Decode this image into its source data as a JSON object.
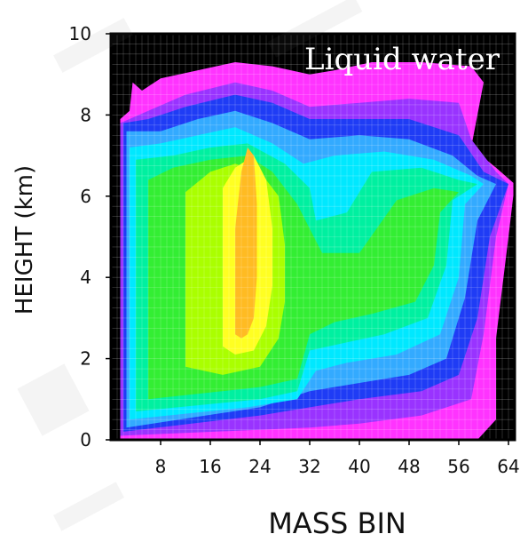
{
  "chart_data": {
    "type": "heatmap",
    "title": "",
    "annotation": "Liquid water",
    "xlabel": "MASS BIN",
    "ylabel": "HEIGHT (km)",
    "xlim": [
      0,
      65
    ],
    "ylim": [
      0,
      10
    ],
    "x_ticks": [
      8,
      16,
      24,
      32,
      40,
      48,
      56,
      64
    ],
    "y_ticks": [
      0,
      2,
      4,
      6,
      8,
      10
    ],
    "grid": true,
    "background_color": "#000000",
    "colors": {
      "magenta": "#ff33ff",
      "violet": "#9933ff",
      "blue": "#1f3cf5",
      "light_blue": "#33aaff",
      "cyan": "#00e8ff",
      "aqua_green": "#00f0a0",
      "green": "#33ee33",
      "yellow_green": "#aaff00",
      "yellow": "#ffff22",
      "orange": "#ffbb22"
    },
    "levels": [
      {
        "color": "magenta",
        "outline": [
          [
            1.5,
            0
          ],
          [
            1.5,
            7.9
          ],
          [
            3,
            8.1
          ],
          [
            3.5,
            8.8
          ],
          [
            5,
            8.6
          ],
          [
            8,
            8.9
          ],
          [
            14,
            9.1
          ],
          [
            20,
            9.3
          ],
          [
            26,
            9.2
          ],
          [
            32,
            9.0
          ],
          [
            36,
            9.1
          ],
          [
            42,
            9.3
          ],
          [
            50,
            9.3
          ],
          [
            58,
            9.2
          ],
          [
            60,
            8.8
          ],
          [
            59,
            8.0
          ],
          [
            58,
            7.2
          ],
          [
            62,
            6.7
          ],
          [
            65,
            6.3
          ],
          [
            64,
            5.0
          ],
          [
            62,
            2.5
          ],
          [
            62,
            0.5
          ],
          [
            59,
            0
          ],
          [
            1.5,
            0
          ]
        ]
      },
      {
        "color": "violet",
        "outline": [
          [
            1.5,
            0.1
          ],
          [
            1.5,
            7.8
          ],
          [
            6,
            8.1
          ],
          [
            12,
            8.5
          ],
          [
            20,
            8.8
          ],
          [
            26,
            8.6
          ],
          [
            32,
            8.2
          ],
          [
            40,
            8.3
          ],
          [
            48,
            8.4
          ],
          [
            56,
            8.3
          ],
          [
            58,
            7.4
          ],
          [
            62,
            6.6
          ],
          [
            64,
            6.3
          ],
          [
            62,
            5.0
          ],
          [
            60,
            2.6
          ],
          [
            58,
            1.0
          ],
          [
            50,
            0.6
          ],
          [
            40,
            0.4
          ],
          [
            32,
            0.3
          ],
          [
            1.5,
            0.1
          ]
        ]
      },
      {
        "color": "blue",
        "outline": [
          [
            2,
            0.2
          ],
          [
            2,
            7.8
          ],
          [
            6,
            7.9
          ],
          [
            12,
            8.2
          ],
          [
            20,
            8.5
          ],
          [
            26,
            8.3
          ],
          [
            32,
            7.9
          ],
          [
            40,
            7.9
          ],
          [
            48,
            7.9
          ],
          [
            56,
            7.5
          ],
          [
            60,
            6.6
          ],
          [
            64,
            6.3
          ],
          [
            61,
            5.0
          ],
          [
            59,
            3.0
          ],
          [
            56,
            1.6
          ],
          [
            50,
            1.2
          ],
          [
            40,
            1.0
          ],
          [
            32,
            0.8
          ],
          [
            24,
            0.6
          ],
          [
            2,
            0.2
          ]
        ]
      },
      {
        "color": "light_blue",
        "outline": [
          [
            2.5,
            0.3
          ],
          [
            2.5,
            7.6
          ],
          [
            8,
            7.6
          ],
          [
            14,
            7.9
          ],
          [
            20,
            8.1
          ],
          [
            26,
            7.8
          ],
          [
            32,
            7.4
          ],
          [
            40,
            7.5
          ],
          [
            48,
            7.4
          ],
          [
            55,
            7.0
          ],
          [
            59,
            6.5
          ],
          [
            62,
            6.3
          ],
          [
            59,
            5.4
          ],
          [
            57,
            3.5
          ],
          [
            54,
            2.0
          ],
          [
            48,
            1.6
          ],
          [
            40,
            1.4
          ],
          [
            32,
            1.2
          ],
          [
            24,
            0.8
          ],
          [
            2.5,
            0.3
          ]
        ]
      },
      {
        "color": "cyan",
        "outline": [
          [
            3,
            0.5
          ],
          [
            3,
            7.2
          ],
          [
            8,
            7.3
          ],
          [
            14,
            7.5
          ],
          [
            20,
            7.7
          ],
          [
            26,
            7.3
          ],
          [
            31,
            6.8
          ],
          [
            36,
            7.0
          ],
          [
            44,
            7.1
          ],
          [
            52,
            6.9
          ],
          [
            58,
            6.5
          ],
          [
            60,
            6.3
          ],
          [
            57,
            5.8
          ],
          [
            56,
            4.0
          ],
          [
            53,
            2.6
          ],
          [
            46,
            2.1
          ],
          [
            38,
            1.9
          ],
          [
            33,
            1.7
          ],
          [
            30,
            1.0
          ],
          [
            22,
            0.8
          ],
          [
            3,
            0.5
          ]
        ]
      },
      {
        "color": "aqua_green",
        "outline": [
          [
            4,
            0.7
          ],
          [
            4,
            6.9
          ],
          [
            10,
            7.0
          ],
          [
            16,
            7.2
          ],
          [
            22,
            7.3
          ],
          [
            28,
            6.8
          ],
          [
            32,
            6.2
          ],
          [
            33,
            5.4
          ],
          [
            38,
            5.6
          ],
          [
            42,
            6.6
          ],
          [
            50,
            6.7
          ],
          [
            56,
            6.4
          ],
          [
            59,
            6.3
          ],
          [
            55,
            5.9
          ],
          [
            54,
            4.3
          ],
          [
            51,
            3.0
          ],
          [
            44,
            2.6
          ],
          [
            38,
            2.4
          ],
          [
            32,
            2.2
          ],
          [
            30,
            1.2
          ],
          [
            24,
            1.0
          ],
          [
            4,
            0.7
          ]
        ]
      },
      {
        "color": "green",
        "outline": [
          [
            6,
            1.0
          ],
          [
            6,
            6.4
          ],
          [
            10,
            6.7
          ],
          [
            16,
            6.9
          ],
          [
            22,
            7.0
          ],
          [
            26,
            6.6
          ],
          [
            30,
            5.8
          ],
          [
            32,
            5.2
          ],
          [
            34,
            4.6
          ],
          [
            40,
            4.6
          ],
          [
            46,
            5.9
          ],
          [
            52,
            6.2
          ],
          [
            56,
            6.1
          ],
          [
            53,
            5.6
          ],
          [
            52,
            4.3
          ],
          [
            49,
            3.4
          ],
          [
            42,
            3.1
          ],
          [
            36,
            2.9
          ],
          [
            32,
            2.6
          ],
          [
            30,
            1.5
          ],
          [
            24,
            1.3
          ],
          [
            6,
            1.0
          ]
        ]
      },
      {
        "color": "yellow_green",
        "outline": [
          [
            12,
            1.8
          ],
          [
            12,
            6.1
          ],
          [
            16,
            6.6
          ],
          [
            20,
            6.8
          ],
          [
            24,
            6.6
          ],
          [
            27,
            6.0
          ],
          [
            28,
            4.8
          ],
          [
            28,
            3.4
          ],
          [
            27,
            2.5
          ],
          [
            24,
            1.8
          ],
          [
            18,
            1.6
          ],
          [
            12,
            1.8
          ]
        ]
      },
      {
        "color": "yellow",
        "outline": [
          [
            18,
            2.3
          ],
          [
            18,
            6.2
          ],
          [
            20,
            6.7
          ],
          [
            23,
            7.0
          ],
          [
            25,
            6.4
          ],
          [
            26,
            5.2
          ],
          [
            26,
            3.8
          ],
          [
            25,
            2.8
          ],
          [
            23,
            2.2
          ],
          [
            20,
            2.1
          ],
          [
            18,
            2.3
          ]
        ]
      },
      {
        "color": "orange",
        "outline": [
          [
            20,
            2.6
          ],
          [
            20,
            5.2
          ],
          [
            21,
            6.6
          ],
          [
            22,
            7.2
          ],
          [
            23,
            7.0
          ],
          [
            23.5,
            5.8
          ],
          [
            23.5,
            4.0
          ],
          [
            23,
            3.0
          ],
          [
            22,
            2.6
          ],
          [
            21,
            2.5
          ],
          [
            20,
            2.6
          ]
        ]
      }
    ]
  }
}
